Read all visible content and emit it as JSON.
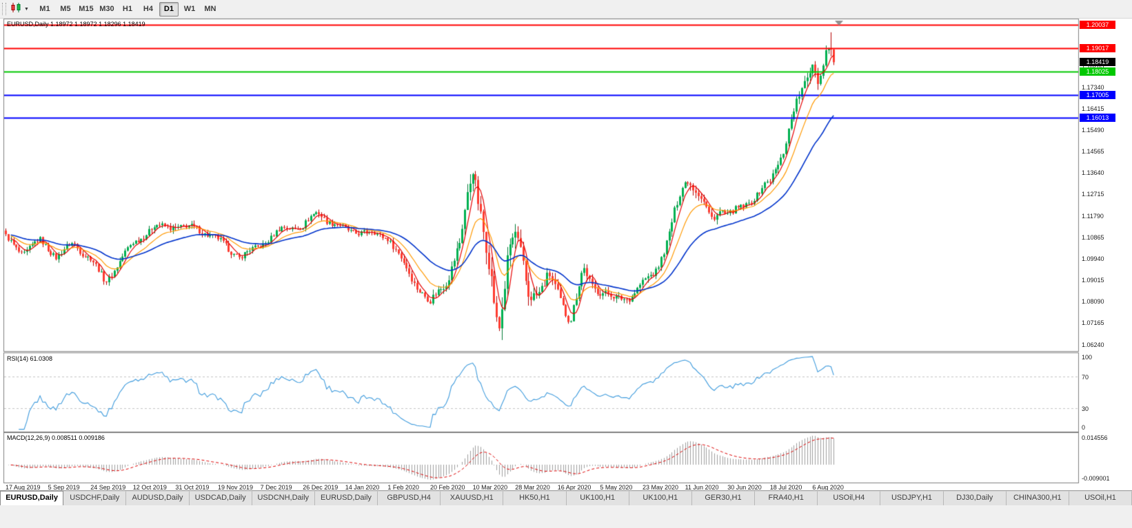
{
  "toolbar": {
    "timeframes": [
      "M1",
      "M5",
      "M15",
      "M30",
      "H1",
      "H4",
      "D1",
      "W1",
      "MN"
    ],
    "selected_timeframe": "D1"
  },
  "chart": {
    "title": "EURUSD,Daily 1.18972 1.18972 1.18296 1.18419",
    "symbol": "EURUSD",
    "period": "Daily",
    "ohlc": {
      "open": "1.18972",
      "high": "1.18972",
      "low": "1.18296",
      "close": "1.18419"
    },
    "price_axis_ticks": [
      "1.18265",
      "1.17340",
      "1.16415",
      "1.15490",
      "1.14565",
      "1.13640",
      "1.12715",
      "1.11790",
      "1.10865",
      "1.09940",
      "1.09015",
      "1.08090",
      "1.07165",
      "1.06240"
    ],
    "levels": [
      {
        "label": "1.20037",
        "value": 1.20037,
        "color": "#ff0000",
        "type": "resistance"
      },
      {
        "label": "1.19017",
        "value": 1.19017,
        "color": "#ff0000",
        "type": "resistance"
      },
      {
        "label": "1.18025",
        "value": 1.18025,
        "color": "#00c800",
        "type": "support"
      },
      {
        "label": "1.17005",
        "value": 1.17005,
        "color": "#0000ff",
        "type": "support"
      },
      {
        "label": "1.16013",
        "value": 1.16013,
        "color": "#0000ff",
        "type": "support"
      }
    ],
    "current_price_badge": {
      "label": "1.18419",
      "value": 1.18419,
      "color": "#000000"
    },
    "date_axis": [
      "17 Aug 2019",
      "5 Sep 2019",
      "24 Sep 2019",
      "12 Oct 2019",
      "31 Oct 2019",
      "19 Nov 2019",
      "7 Dec 2019",
      "26 Dec 2019",
      "14 Jan 2020",
      "1 Feb 2020",
      "20 Feb 2020",
      "10 Mar 2020",
      "28 Mar 2020",
      "16 Apr 2020",
      "5 May 2020",
      "23 May 2020",
      "11 Jun 2020",
      "30 Jun 2020",
      "18 Jul 2020",
      "6 Aug 2020"
    ],
    "chart_data": {
      "type": "candlestick",
      "bars": 313,
      "bars_per_label": 16,
      "price_range_top": 1.2027,
      "price_range_bottom": 1.0596,
      "price_path_anchors": [
        [
          0,
          1.1095
        ],
        [
          0.4,
          1.103
        ],
        [
          0.8,
          1.1065
        ],
        [
          1.2,
          1.099
        ],
        [
          1.6,
          1.106
        ],
        [
          2,
          1.101
        ],
        [
          2.35,
          1.09
        ],
        [
          2.7,
          1.098
        ],
        [
          3,
          1.1045
        ],
        [
          3.5,
          1.1135
        ],
        [
          4,
          1.115
        ],
        [
          4.5,
          1.112
        ],
        [
          5,
          1.106
        ],
        [
          5.5,
          1.101
        ],
        [
          6,
          1.1065
        ],
        [
          6.5,
          1.111
        ],
        [
          7,
          1.1125
        ],
        [
          7.35,
          1.1205
        ],
        [
          7.7,
          1.116
        ],
        [
          8,
          1.1125
        ],
        [
          8.5,
          1.109
        ],
        [
          9,
          1.1085
        ],
        [
          9.5,
          1.095
        ],
        [
          10,
          1.08
        ],
        [
          10.4,
          1.089
        ],
        [
          10.7,
          1.103
        ],
        [
          11,
          1.141
        ],
        [
          11.15,
          1.127
        ],
        [
          11.35,
          1.104
        ],
        [
          11.6,
          1.069
        ],
        [
          11.85,
          1.108
        ],
        [
          12,
          1.1085
        ],
        [
          12.3,
          1.079
        ],
        [
          12.55,
          1.084
        ],
        [
          12.8,
          1.0915
        ],
        [
          13,
          1.085
        ],
        [
          13.3,
          1.0765
        ],
        [
          13.6,
          1.0955
        ],
        [
          13.8,
          1.0875
        ],
        [
          14,
          1.0845
        ],
        [
          14.35,
          1.08
        ],
        [
          14.7,
          1.0835
        ],
        [
          15,
          1.09
        ],
        [
          15.3,
          1.096
        ],
        [
          15.6,
          1.108
        ],
        [
          15.9,
          1.127
        ],
        [
          16.05,
          1.133
        ],
        [
          16.3,
          1.126
        ],
        [
          16.6,
          1.117
        ],
        [
          16.85,
          1.123
        ],
        [
          17,
          1.1195
        ],
        [
          17.4,
          1.123
        ],
        [
          17.7,
          1.126
        ],
        [
          18,
          1.131
        ],
        [
          18.3,
          1.145
        ],
        [
          18.55,
          1.163
        ],
        [
          18.75,
          1.174
        ],
        [
          19,
          1.188
        ],
        [
          19.15,
          1.176
        ],
        [
          19.3,
          1.187
        ],
        [
          19.45,
          1.1935
        ],
        [
          19.5,
          1.1842
        ]
      ],
      "volatility_anchors": [
        [
          0,
          0.004
        ],
        [
          9,
          0.004
        ],
        [
          9.8,
          0.005
        ],
        [
          10.5,
          0.007
        ],
        [
          11,
          0.011
        ],
        [
          11.6,
          0.014
        ],
        [
          12,
          0.012
        ],
        [
          12.6,
          0.009
        ],
        [
          13.2,
          0.007
        ],
        [
          14,
          0.005
        ],
        [
          15,
          0.0045
        ],
        [
          16,
          0.0065
        ],
        [
          16.6,
          0.0055
        ],
        [
          17.5,
          0.004
        ],
        [
          18.3,
          0.0055
        ],
        [
          19,
          0.007
        ],
        [
          19.5,
          0.0075
        ]
      ],
      "last_candle": {
        "open": 1.18972,
        "high": 1.18972,
        "low": 1.18296,
        "close": 1.18419
      },
      "prior_spike_high": 1.1966,
      "moving_averages": [
        {
          "name": "fast",
          "type": "sma",
          "period": 5,
          "color": "#e60000"
        },
        {
          "name": "medium",
          "type": "ema",
          "period": 13,
          "color": "#ff9900"
        },
        {
          "name": "slow",
          "type": "ema",
          "period": 34,
          "color": "#0033cc"
        }
      ]
    }
  },
  "rsi": {
    "label": "RSI(14) 61.0308",
    "value": 61.0308,
    "axis_ticks": [
      "100",
      "70",
      "30",
      "0"
    ],
    "guide_levels": [
      70,
      30
    ],
    "line_color": "#3e9bdd"
  },
  "macd": {
    "label": "MACD(12,26,9) 0.008511 0.009186",
    "macd_value": "0.008511",
    "signal_value": "0.009186",
    "axis_ticks": [
      "0.014556",
      "-0.009001"
    ],
    "max": 0.014556,
    "min": -0.009001,
    "histogram_color": "#9e9e9e",
    "signal_color": "#dd0000"
  },
  "tabs": [
    {
      "label": "EURUSD,Daily",
      "active": true
    },
    {
      "label": "USDCHF,Daily",
      "active": false
    },
    {
      "label": "AUDUSD,Daily",
      "active": false
    },
    {
      "label": "USDCAD,Daily",
      "active": false
    },
    {
      "label": "USDCNH,Daily",
      "active": false
    },
    {
      "label": "EURUSD,Daily",
      "active": false
    },
    {
      "label": "GBPUSD,H4",
      "active": false
    },
    {
      "label": "XAUUSD,H1",
      "active": false
    },
    {
      "label": "HK50,H1",
      "active": false
    },
    {
      "label": "UK100,H1",
      "active": false
    },
    {
      "label": "UK100,H1",
      "active": false
    },
    {
      "label": "GER30,H1",
      "active": false
    },
    {
      "label": "FRA40,H1",
      "active": false
    },
    {
      "label": "USOil,H4",
      "active": false
    },
    {
      "label": "USDJPY,H1",
      "active": false
    },
    {
      "label": "DJ30,Daily",
      "active": false
    },
    {
      "label": "CHINA300,H1",
      "active": false
    },
    {
      "label": "USOil,H1",
      "active": false
    }
  ],
  "colors": {
    "up_candle": "#00b050",
    "up_candle_border": "#007a33",
    "down_candle": "#ff3b30",
    "down_candle_border": "#b30000",
    "panel_background": "#ffffff",
    "chrome_background": "#f0f0f0",
    "panel_border": "#7f7f7f"
  }
}
